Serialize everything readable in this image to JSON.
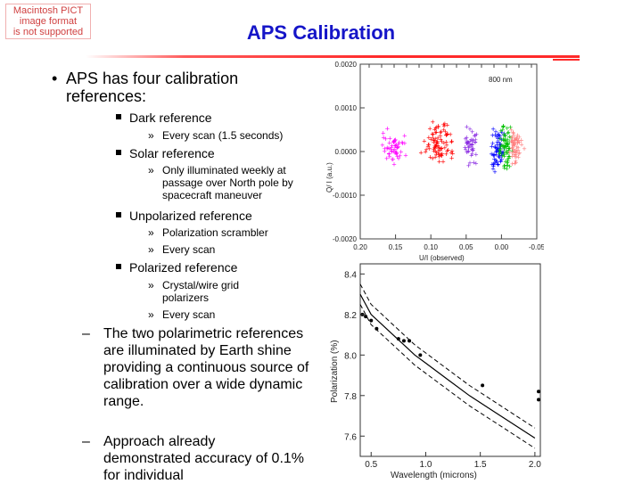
{
  "pict_note": [
    "Macintosh PICT",
    "image format",
    "is not supported"
  ],
  "title": "APS Calibration",
  "bullet_main": "APS has four calibration references:",
  "level2": [
    "Dark reference",
    "Solar reference",
    "Unpolarized reference",
    "Polarized reference"
  ],
  "level3": {
    "dark": [
      "Every scan (1.5 seconds)"
    ],
    "solar": [
      "Only illuminated weekly at passage over North pole by spacecraft maneuver"
    ],
    "unpolarized": [
      "Polarization scrambler",
      "Every scan"
    ],
    "polarized": [
      "Crystal/wire grid polarizers",
      "Every scan"
    ]
  },
  "dashes": [
    "The two polarimetric references are illuminated by Earth shine providing a continuous source of calibration over a wide dynamic range.",
    "Approach already demonstrated accuracy of 0.1% for individual"
  ],
  "scatter_label": "800 nm",
  "scatter_ylabel": "Q/ I (a.u.)",
  "scatter_xlabel": "U/I (observed)",
  "scatter_yticks": [
    "0.0020",
    "0.0010",
    "0.0000",
    "-0.0010",
    "-0.0020"
  ],
  "scatter_xticks": [
    "0.20",
    "0.15",
    "0.10",
    "0.05",
    "0.00",
    "-0.05"
  ],
  "chart_data": [
    {
      "type": "scatter",
      "xlabel": "U/I (observed)",
      "ylabel": "Q/ I (a.u.)",
      "ylim": [
        -0.002,
        0.002
      ],
      "xlim": [
        0.2,
        -0.05
      ],
      "annotation": "800 nm",
      "series": [
        {
          "color": "#ff00ff",
          "center": [
            0.155,
            0.0001
          ]
        },
        {
          "color": "#ff0000",
          "center": [
            0.09,
            0.0002
          ]
        },
        {
          "color": "#8a2be2",
          "center": [
            0.045,
            0.0001
          ]
        },
        {
          "color": "#0000ff",
          "center": [
            0.005,
            0.0001
          ]
        },
        {
          "color": "#00c000",
          "center": [
            -0.005,
            0.0001
          ]
        },
        {
          "color": "#ff8080",
          "center": [
            -0.02,
            0.0001
          ]
        }
      ]
    },
    {
      "type": "line",
      "xlabel": "Wavelength (microns)",
      "ylabel": "Polarization (%)",
      "xlim": [
        0.4,
        2.05
      ],
      "ylim": [
        7.5,
        8.45
      ],
      "x_ticks": [
        "0.5",
        "1.0",
        "1.5",
        "2.0"
      ],
      "y_ticks": [
        "8.4",
        "8.2",
        "8.0",
        "7.8",
        "7.6"
      ],
      "curve_x": [
        0.4,
        0.5,
        0.6,
        0.7,
        0.8,
        0.9,
        1.0,
        1.2,
        1.4,
        1.6,
        1.8,
        2.0
      ],
      "curve_y": [
        8.3,
        8.2,
        8.15,
        8.1,
        8.05,
        8.0,
        7.96,
        7.88,
        7.8,
        7.73,
        7.66,
        7.59
      ],
      "band": 0.05,
      "points": [
        [
          0.42,
          8.2
        ],
        [
          0.45,
          8.19
        ],
        [
          0.5,
          8.17
        ],
        [
          0.55,
          8.13
        ],
        [
          0.75,
          8.08
        ],
        [
          0.8,
          8.07
        ],
        [
          0.85,
          8.07
        ],
        [
          0.95,
          8.0
        ],
        [
          1.52,
          7.85
        ],
        [
          2.05,
          7.82
        ],
        [
          2.05,
          7.78
        ]
      ]
    }
  ]
}
